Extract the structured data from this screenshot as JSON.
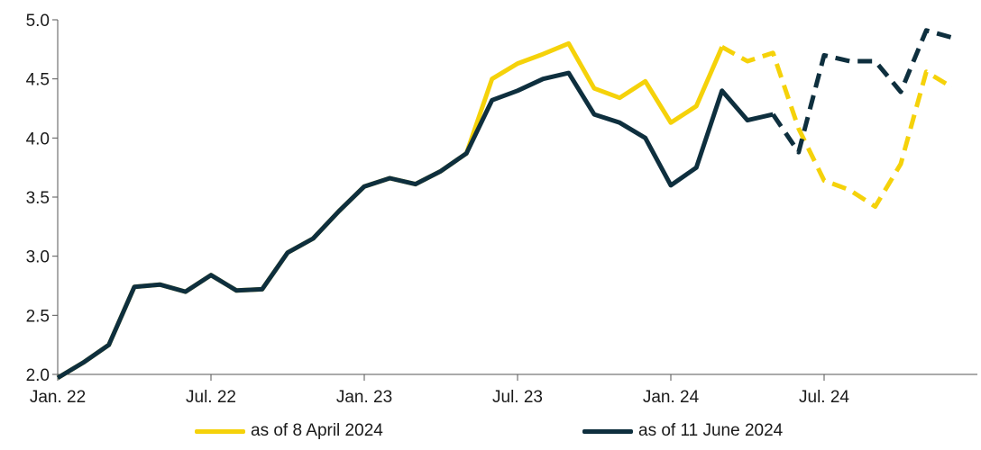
{
  "chart_data": {
    "type": "line",
    "x": [
      "2022-01",
      "2022-02",
      "2022-03",
      "2022-04",
      "2022-05",
      "2022-06",
      "2022-07",
      "2022-08",
      "2022-09",
      "2022-10",
      "2022-11",
      "2022-12",
      "2023-01",
      "2023-02",
      "2023-03",
      "2023-04",
      "2023-05",
      "2023-06",
      "2023-07",
      "2023-08",
      "2023-09",
      "2023-10",
      "2023-11",
      "2023-12",
      "2024-01",
      "2024-02",
      "2024-03",
      "2024-04",
      "2024-05",
      "2024-06",
      "2024-07",
      "2024-08",
      "2024-09",
      "2024-10",
      "2024-11",
      "2024-12",
      "2025-01"
    ],
    "x_tick_labels": [
      "Jan. 22",
      "Jul. 22",
      "Jan. 23",
      "Jul. 23",
      "Jan. 24",
      "Jul. 24"
    ],
    "x_tick_positions": [
      "2022-01",
      "2022-07",
      "2023-01",
      "2023-07",
      "2024-01",
      "2024-07"
    ],
    "y_tick_labels": [
      "2.0",
      "2.5",
      "3.0",
      "3.5",
      "4.0",
      "4.5",
      "5.0"
    ],
    "ylim": [
      2.0,
      5.0
    ],
    "grid": false,
    "legend_position": "bottom",
    "series": [
      {
        "name": "as of 8 April 2024",
        "color": "#f5d20a",
        "values": [
          1.97,
          2.1,
          2.25,
          2.74,
          2.76,
          2.7,
          2.84,
          2.71,
          2.72,
          3.03,
          3.15,
          3.38,
          3.59,
          3.66,
          3.61,
          3.72,
          3.87,
          4.5,
          4.63,
          4.71,
          4.8,
          4.42,
          4.34,
          4.48,
          4.13,
          4.27,
          4.77,
          4.65,
          4.72,
          4.08,
          3.64,
          3.56,
          3.42,
          3.78,
          4.56,
          4.43,
          null
        ],
        "dashed_from_index": 26
      },
      {
        "name": "as of 11 June 2024",
        "color": "#0e2f3e",
        "values": [
          1.97,
          2.1,
          2.25,
          2.74,
          2.76,
          2.7,
          2.84,
          2.71,
          2.72,
          3.03,
          3.15,
          3.38,
          3.59,
          3.66,
          3.61,
          3.72,
          3.87,
          4.32,
          4.4,
          4.5,
          4.55,
          4.2,
          4.13,
          4.0,
          3.6,
          3.75,
          4.4,
          4.15,
          4.2,
          3.88,
          4.7,
          4.65,
          4.65,
          4.39,
          4.91,
          4.85,
          null
        ],
        "dashed_from_index": 28
      }
    ]
  }
}
